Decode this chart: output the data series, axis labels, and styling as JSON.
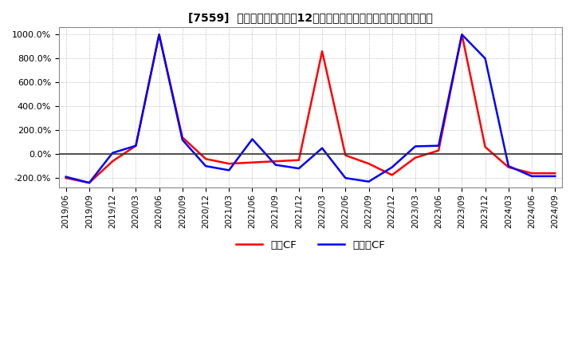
{
  "title": "[7559]  キャッシュフローの12か月移動合計の対前年同期増減率の推移",
  "ylim": [
    -280,
    1060
  ],
  "yticks": [
    -200,
    0,
    200,
    400,
    600,
    800,
    1000
  ],
  "legend_labels": [
    "営業CF",
    "フリーCF"
  ],
  "line_colors": [
    "#ff0000",
    "#0000ff"
  ],
  "background_color": "#ffffff",
  "grid_color": "#aaaaaa",
  "x_labels": [
    "2019/06",
    "2019/09",
    "2019/12",
    "2020/03",
    "2020/06",
    "2020/09",
    "2020/12",
    "2021/03",
    "2021/06",
    "2021/09",
    "2021/12",
    "2022/03",
    "2022/06",
    "2022/09",
    "2022/12",
    "2023/03",
    "2023/06",
    "2023/09",
    "2023/12",
    "2024/03",
    "2024/06",
    "2024/09"
  ],
  "op_cf": [
    -200,
    -240,
    -60,
    70,
    1000,
    140,
    -40,
    -80,
    -70,
    -60,
    -50,
    860,
    -10,
    -80,
    -175,
    -30,
    30,
    1000,
    60,
    -110,
    -160,
    -160
  ],
  "free_cf": [
    -190,
    -240,
    10,
    70,
    1000,
    120,
    -100,
    -135,
    125,
    -90,
    -120,
    50,
    -200,
    -230,
    -110,
    65,
    70,
    1000,
    800,
    -100,
    -185,
    -185
  ]
}
